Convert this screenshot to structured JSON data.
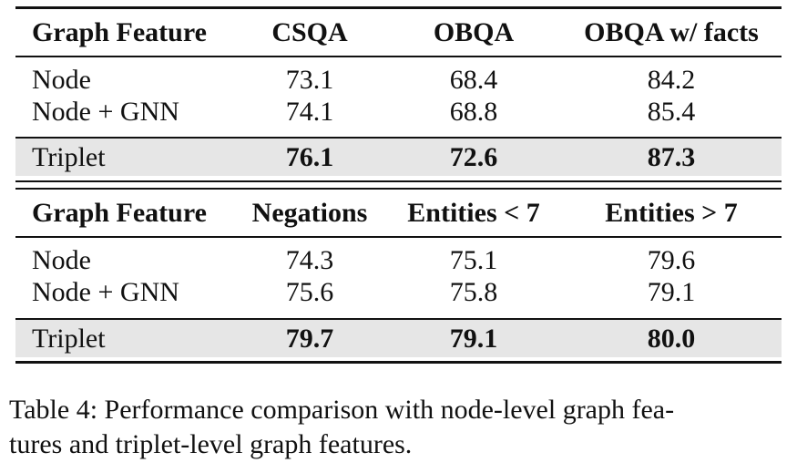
{
  "table": {
    "block1": {
      "header": [
        "Graph Feature",
        "CSQA",
        "OBQA",
        "OBQA w/ facts"
      ],
      "rows": [
        [
          "Node",
          "73.1",
          "68.4",
          "84.2"
        ],
        [
          "Node + GNN",
          "74.1",
          "68.8",
          "85.4"
        ],
        [
          "Triplet",
          "76.1",
          "72.6",
          "87.3"
        ]
      ]
    },
    "block2": {
      "header": [
        "Graph Feature",
        "Negations",
        "Entities < 7",
        "Entities > 7"
      ],
      "rows": [
        [
          "Node",
          "74.3",
          "75.1",
          "79.6"
        ],
        [
          "Node + GNN",
          "75.6",
          "75.8",
          "79.1"
        ],
        [
          "Triplet",
          "79.7",
          "79.1",
          "80.0"
        ]
      ]
    },
    "highlight_color": "#e6e6e6"
  },
  "caption": {
    "line1": "Table 4: Performance comparison with node-level graph fea-",
    "line2": "tures and triplet-level graph features."
  }
}
